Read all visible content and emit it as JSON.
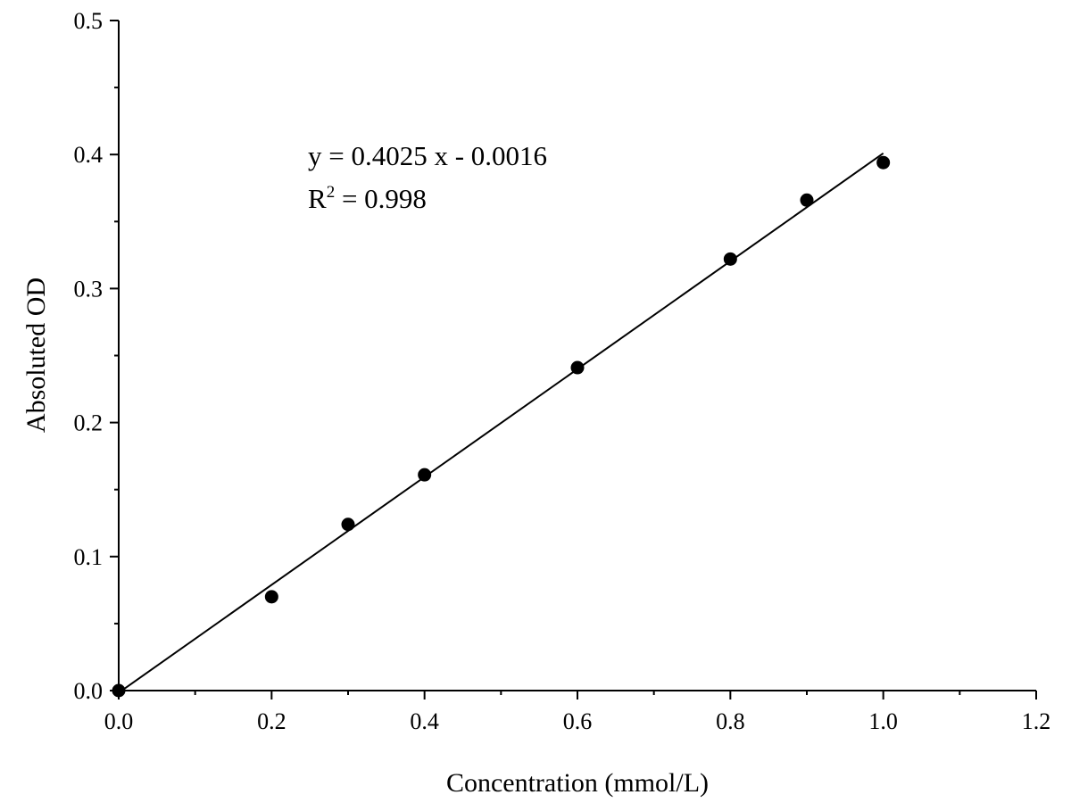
{
  "chart_data": {
    "type": "scatter",
    "xlabel": "Concentration (mmol/L)",
    "ylabel": "Absoluted OD",
    "x": [
      0,
      0.2,
      0.3,
      0.4,
      0.6,
      0.8,
      0.9,
      1.0
    ],
    "values": [
      0,
      0.07,
      0.124,
      0.161,
      0.241,
      0.322,
      0.366,
      0.394
    ],
    "color": "#000000",
    "fit": {
      "x": [
        0,
        1.0
      ],
      "values": [
        -0.0016,
        0.4009
      ],
      "color": "#000000"
    },
    "equation": "y = 0.4025 x - 0.0016",
    "r2": {
      "base": "R",
      "sup": "2",
      "rest": " = 0.998"
    },
    "xlim": [
      0,
      1.2
    ],
    "xticks": [
      {
        "value": 0,
        "label": "0.0"
      },
      0.2,
      0.4,
      0.6,
      0.8,
      {
        "value": 1,
        "label": "1.0"
      },
      1.2
    ],
    "xminorticks": [
      0.1,
      0.3,
      0.5,
      0.7,
      0.9,
      1.1
    ],
    "ylim": [
      0,
      0.5
    ],
    "yticks": [
      {
        "value": 0,
        "label": "0.0"
      },
      0.1,
      0.2,
      0.3,
      0.4,
      0.5
    ],
    "yminorticks": [
      0.05,
      0.15,
      0.25,
      0.35,
      0.45
    ],
    "grid": false
  }
}
